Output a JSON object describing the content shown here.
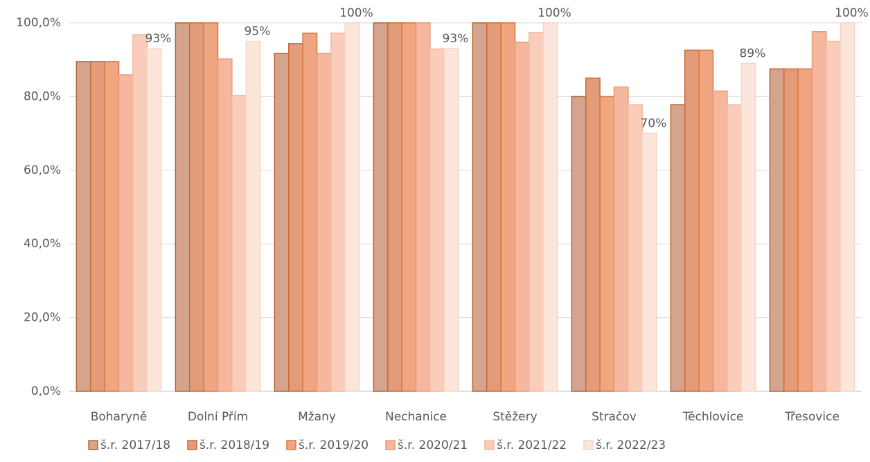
{
  "chart_data": {
    "type": "bar",
    "categories": [
      "Boharyně",
      "Dolní Přím",
      "Mžany",
      "Nechanice",
      "Stěžery",
      "Stračov",
      "Těchlovice",
      "Třesovice"
    ],
    "series": [
      {
        "name": "š.r. 2017/18",
        "color": "#d4a48e",
        "values": [
          89.5,
          100,
          91.7,
          100,
          100,
          80,
          77.8,
          87.5
        ]
      },
      {
        "name": "š.r. 2018/19",
        "color": "#e39c79",
        "values": [
          89.5,
          100,
          94.4,
          100,
          100,
          85,
          92.6,
          87.5
        ]
      },
      {
        "name": "š.r. 2019/20",
        "color": "#efa681",
        "values": [
          89.5,
          100,
          97.2,
          100,
          100,
          80,
          92.6,
          87.5
        ]
      },
      {
        "name": "š.r. 2020/21",
        "color": "#f5b79d",
        "values": [
          85.9,
          90.2,
          91.7,
          100,
          94.7,
          82.6,
          81.5,
          97.6
        ]
      },
      {
        "name": "š.r. 2021/22",
        "color": "#f9cdba",
        "values": [
          96.8,
          80.3,
          97.2,
          92.9,
          97.4,
          77.8,
          77.8,
          95
        ]
      },
      {
        "name": "š.r. 2022/23",
        "color": "#fce6dc",
        "values": [
          93,
          95,
          100,
          93,
          100,
          70,
          89,
          100
        ],
        "value_labels": [
          "93%",
          "95%",
          "100%",
          "93%",
          "100%",
          "70%",
          "89%",
          "100%"
        ]
      }
    ],
    "ylim": [
      0,
      100
    ],
    "yticks": [
      {
        "value": 0,
        "label": "0,0%"
      },
      {
        "value": 20,
        "label": "20,0%"
      },
      {
        "value": 40,
        "label": "40,0%"
      },
      {
        "value": 60,
        "label": "60,0%"
      },
      {
        "value": 80,
        "label": "80,0%"
      },
      {
        "value": 100,
        "label": "100,0%"
      }
    ],
    "grid": true,
    "legend": "bottom"
  }
}
